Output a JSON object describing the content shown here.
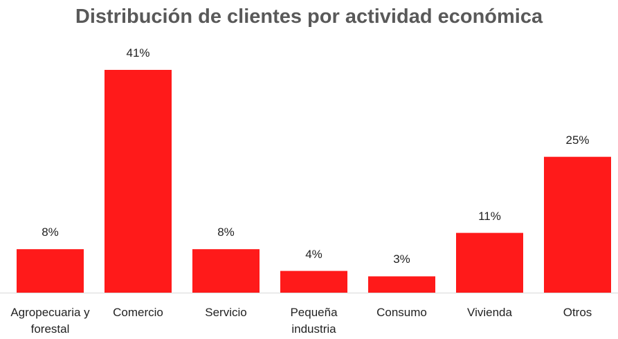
{
  "chart_data": {
    "type": "bar",
    "title": "Distribución de clientes por actividad económica",
    "categories": [
      "Agropecuaria y forestal",
      "Comercio",
      "Servicio",
      "Pequeña industria",
      "Consumo",
      "Vivienda",
      "Otros"
    ],
    "values": [
      8,
      41,
      8,
      4,
      3,
      11,
      25
    ],
    "value_labels": [
      "8%",
      "41%",
      "8%",
      "4%",
      "3%",
      "11%",
      "25%"
    ],
    "color": "#ff1a1a"
  }
}
